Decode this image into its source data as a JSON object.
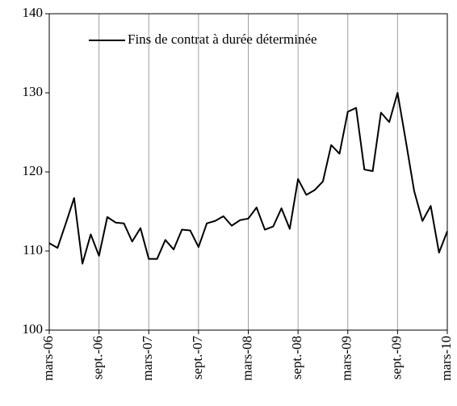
{
  "chart_data": {
    "type": "line",
    "categories": [
      "mars-06",
      null,
      null,
      null,
      null,
      null,
      "sept.-06",
      null,
      null,
      null,
      null,
      null,
      "mars-07",
      null,
      null,
      null,
      null,
      null,
      "sept.-07",
      null,
      null,
      null,
      null,
      null,
      "mars-08",
      null,
      null,
      null,
      null,
      null,
      "sept.-08",
      null,
      null,
      null,
      null,
      null,
      "mars-09",
      null,
      null,
      null,
      null,
      null,
      "sept.-09",
      null,
      null,
      null,
      null,
      null,
      "mars-10"
    ],
    "series": [
      {
        "name": "Fins de contrat à durée déterminée",
        "color": "#000000",
        "values": [
          111.0,
          110.4,
          113.5,
          116.7,
          108.4,
          112.1,
          109.4,
          114.3,
          113.6,
          113.5,
          111.2,
          112.9,
          109.0,
          109.0,
          111.4,
          110.2,
          112.7,
          112.6,
          110.5,
          113.5,
          113.8,
          114.4,
          113.2,
          113.9,
          114.1,
          115.5,
          112.7,
          113.1,
          115.4,
          112.8,
          119.1,
          117.1,
          117.7,
          118.8,
          123.4,
          122.3,
          127.6,
          128.1,
          120.3,
          120.1,
          127.5,
          126.3,
          130.0,
          123.9,
          117.6,
          113.8,
          115.7,
          109.8,
          112.5
        ]
      }
    ],
    "ylim": [
      100,
      140
    ],
    "yticks": [
      100,
      110,
      120,
      130,
      140
    ],
    "grid": "x",
    "legend": "top-left"
  }
}
